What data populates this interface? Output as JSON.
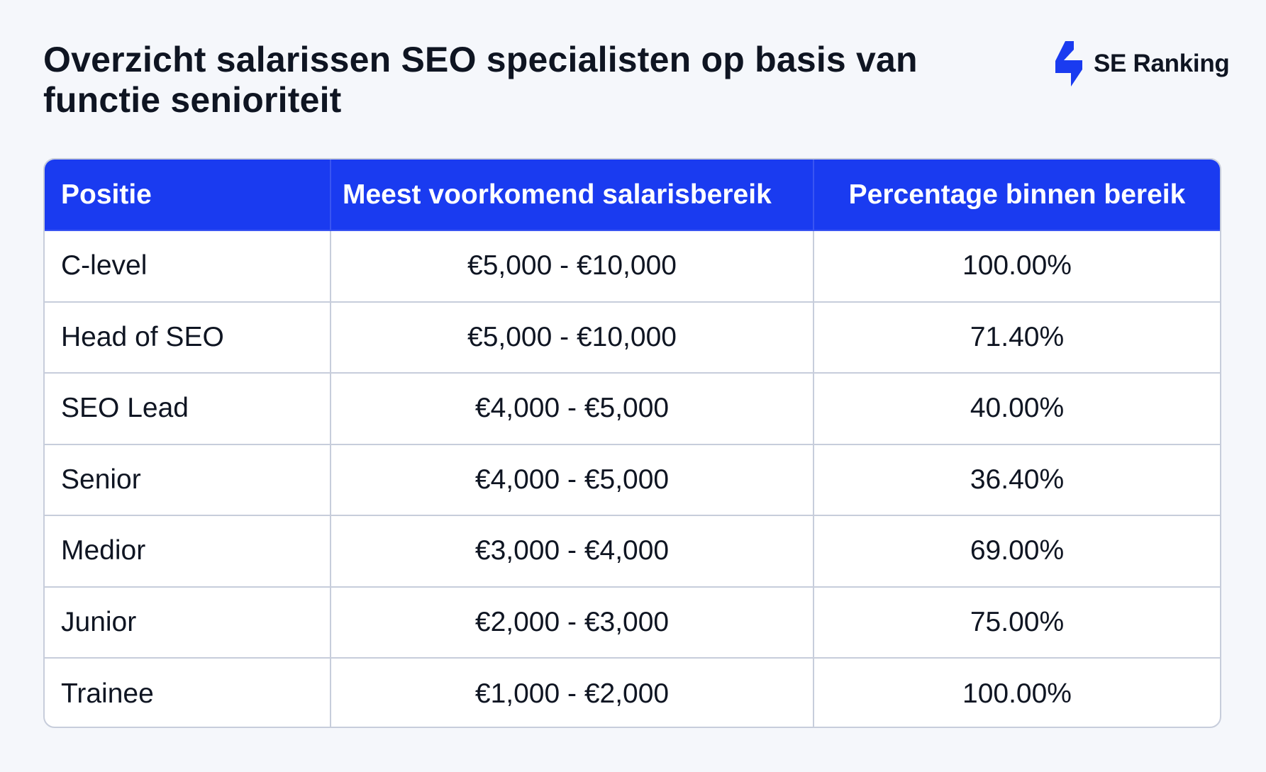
{
  "title": "Overzicht salarissen SEO specialisten op basis van functie senioriteit",
  "brand": {
    "name": "SE Ranking",
    "icon": "se-ranking-logo-icon",
    "color": "#1a3bf0"
  },
  "colors": {
    "header_background": "#1a3bf0",
    "header_text": "#ffffff",
    "border": "#c7cddb",
    "page_background": "#f5f7fb"
  },
  "chart_data": {
    "type": "table",
    "columns": [
      "Positie",
      "Meest voorkomend salarisbereik",
      "Percentage binnen bereik"
    ],
    "rows": [
      [
        "C-level",
        "€5,000 - €10,000",
        "100.00%"
      ],
      [
        "Head of SEO",
        "€5,000 - €10,000",
        "71.40%"
      ],
      [
        "SEO Lead",
        "€4,000 - €5,000",
        "40.00%"
      ],
      [
        "Senior",
        "€4,000 - €5,000",
        "36.40%"
      ],
      [
        "Medior",
        "€3,000 - €4,000",
        "69.00%"
      ],
      [
        "Junior",
        "€2,000 - €3,000",
        "75.00%"
      ],
      [
        "Trainee",
        "€1,000 - €2,000",
        "100.00%"
      ]
    ]
  }
}
